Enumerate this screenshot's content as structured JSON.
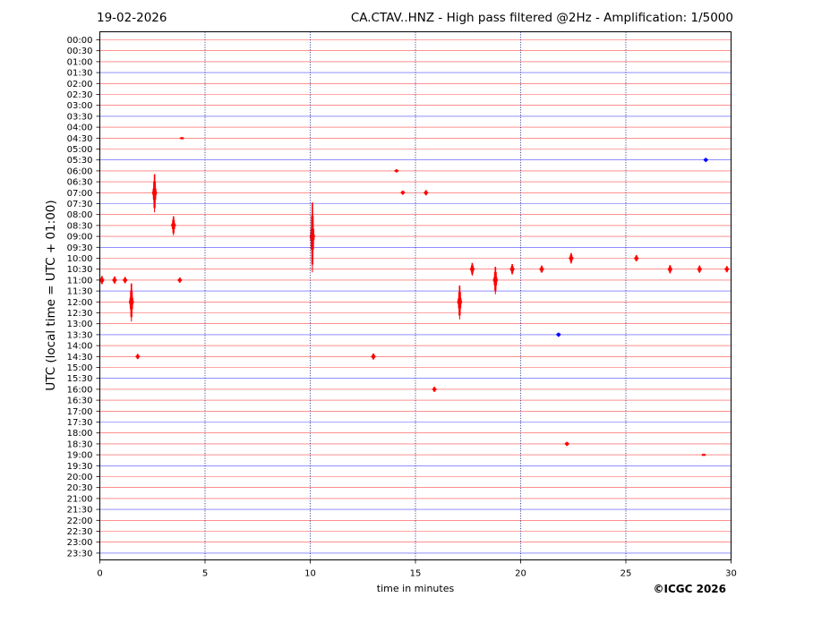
{
  "header": {
    "date": "19-02-2026",
    "title": "CA.CTAV..HNZ - High pass filtered @2Hz - Amplification: 1/5000"
  },
  "footer": {
    "copyright": "©ICGC 2026"
  },
  "colors": {
    "red": "#ff0000",
    "blue": "#0000ff",
    "grid": "#1a237e"
  },
  "chart_data": {
    "type": "line",
    "title": "",
    "xlabel": "time in minutes",
    "ylabel": "UTC (local time = UTC + 01:00)",
    "xlim": [
      0,
      30
    ],
    "xticks": [
      0,
      5,
      10,
      15,
      20,
      25,
      30
    ],
    "vertical_grid": [
      5,
      10,
      15,
      20,
      25
    ],
    "grid": true,
    "legend": "none",
    "rows": [
      "00:00",
      "00:30",
      "01:00",
      "01:30",
      "02:00",
      "02:30",
      "03:00",
      "03:30",
      "04:00",
      "04:30",
      "05:00",
      "05:30",
      "06:00",
      "06:30",
      "07:00",
      "07:30",
      "08:00",
      "08:30",
      "09:00",
      "09:30",
      "10:00",
      "10:30",
      "11:00",
      "11:30",
      "12:00",
      "12:30",
      "13:00",
      "13:30",
      "14:00",
      "14:30",
      "15:00",
      "15:30",
      "16:00",
      "16:30",
      "17:00",
      "17:30",
      "18:00",
      "18:30",
      "19:00",
      "19:30",
      "20:00",
      "20:30",
      "21:00",
      "21:30",
      "22:00",
      "22:30",
      "23:00",
      "23:30"
    ],
    "row_color_cycle": [
      "red",
      "red",
      "red",
      "blue"
    ],
    "events": [
      {
        "row": "04:30",
        "minute": 3.9,
        "amplitude": 0.1
      },
      {
        "row": "05:30",
        "minute": 28.8,
        "amplitude": 0.2
      },
      {
        "row": "06:00",
        "minute": 14.1,
        "amplitude": 0.15
      },
      {
        "row": "07:00",
        "minute": 2.6,
        "amplitude": 1.8
      },
      {
        "row": "07:00",
        "minute": 14.4,
        "amplitude": 0.2
      },
      {
        "row": "07:00",
        "minute": 15.5,
        "amplitude": 0.25
      },
      {
        "row": "08:30",
        "minute": 3.5,
        "amplitude": 0.9
      },
      {
        "row": "09:00",
        "minute": 10.1,
        "amplitude": 3.3
      },
      {
        "row": "10:00",
        "minute": 22.4,
        "amplitude": 0.5
      },
      {
        "row": "10:00",
        "minute": 25.5,
        "amplitude": 0.3
      },
      {
        "row": "10:30",
        "minute": 17.7,
        "amplitude": 0.6
      },
      {
        "row": "10:30",
        "minute": 19.6,
        "amplitude": 0.5
      },
      {
        "row": "10:30",
        "minute": 21.0,
        "amplitude": 0.35
      },
      {
        "row": "10:30",
        "minute": 27.1,
        "amplitude": 0.4
      },
      {
        "row": "10:30",
        "minute": 28.5,
        "amplitude": 0.35
      },
      {
        "row": "10:30",
        "minute": 29.8,
        "amplitude": 0.3
      },
      {
        "row": "11:00",
        "minute": 0.1,
        "amplitude": 0.4
      },
      {
        "row": "11:00",
        "minute": 0.7,
        "amplitude": 0.35
      },
      {
        "row": "11:00",
        "minute": 1.2,
        "amplitude": 0.3
      },
      {
        "row": "11:00",
        "minute": 3.8,
        "amplitude": 0.25
      },
      {
        "row": "11:00",
        "minute": 18.8,
        "amplitude": 1.3
      },
      {
        "row": "12:00",
        "minute": 1.5,
        "amplitude": 1.8
      },
      {
        "row": "12:00",
        "minute": 17.1,
        "amplitude": 1.6
      },
      {
        "row": "13:30",
        "minute": 21.8,
        "amplitude": 0.2
      },
      {
        "row": "14:30",
        "minute": 1.8,
        "amplitude": 0.25
      },
      {
        "row": "14:30",
        "minute": 13.0,
        "amplitude": 0.3
      },
      {
        "row": "16:00",
        "minute": 15.9,
        "amplitude": 0.25
      },
      {
        "row": "18:30",
        "minute": 22.2,
        "amplitude": 0.2
      },
      {
        "row": "19:00",
        "minute": 28.7,
        "amplitude": 0.1
      }
    ]
  }
}
